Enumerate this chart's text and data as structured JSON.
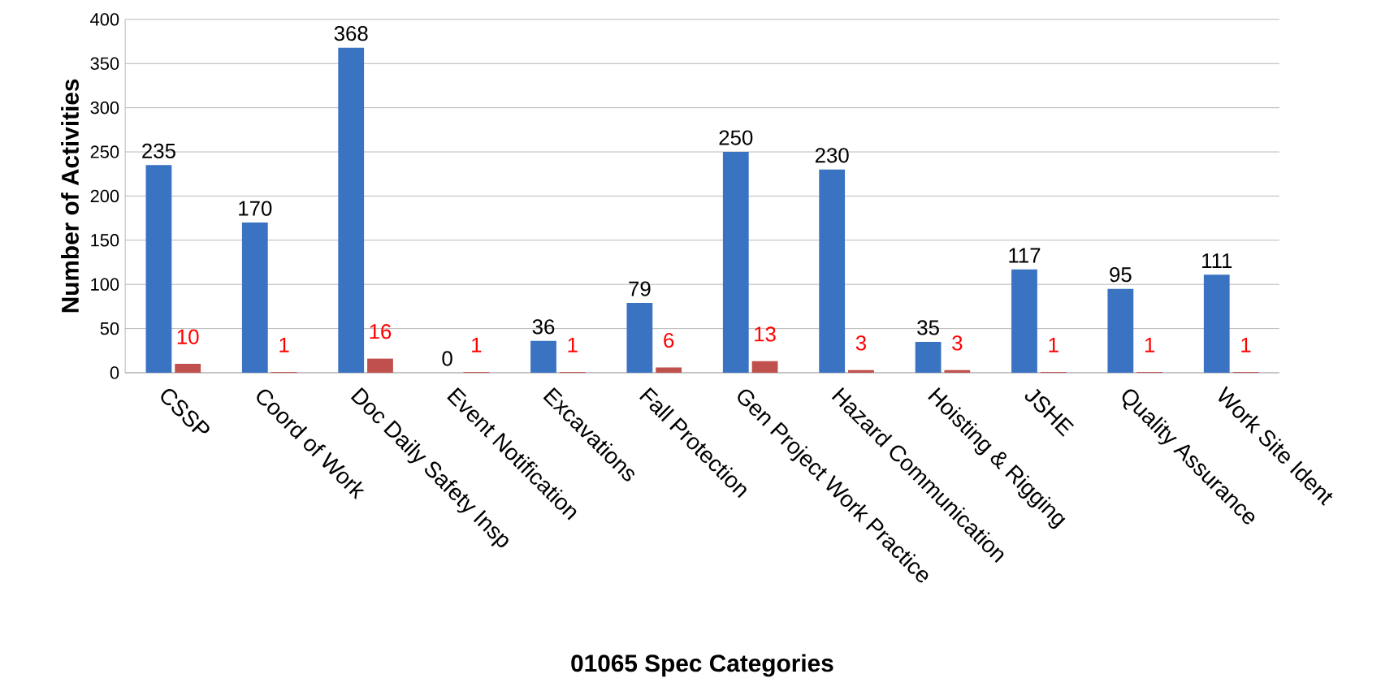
{
  "chart_data": {
    "type": "bar",
    "xlabel": "01065 Spec Categories",
    "ylabel": "Number of Activities",
    "categories": [
      "CSSP",
      "Coord of Work",
      "Doc Daily Safety Insp",
      "Event Notification",
      "Excavations",
      "Fall Protection",
      "Gen Project Work Practice",
      "Hazard Communication",
      "Hoisting & Rigging",
      "JSHE",
      "Quality Assurance",
      "Work Site Ident"
    ],
    "series": [
      {
        "color": "#3a73c2",
        "values": [
          235,
          170,
          368,
          0,
          36,
          79,
          250,
          230,
          35,
          117,
          95,
          111
        ]
      },
      {
        "color": "#c0504d",
        "values": [
          10,
          1,
          16,
          1,
          1,
          6,
          13,
          3,
          3,
          1,
          1,
          1
        ]
      }
    ],
    "ylim": [
      0,
      400
    ],
    "yticks": [
      0,
      50,
      100,
      150,
      200,
      250,
      300,
      350,
      400
    ],
    "grid": "y",
    "data_labels": true
  }
}
